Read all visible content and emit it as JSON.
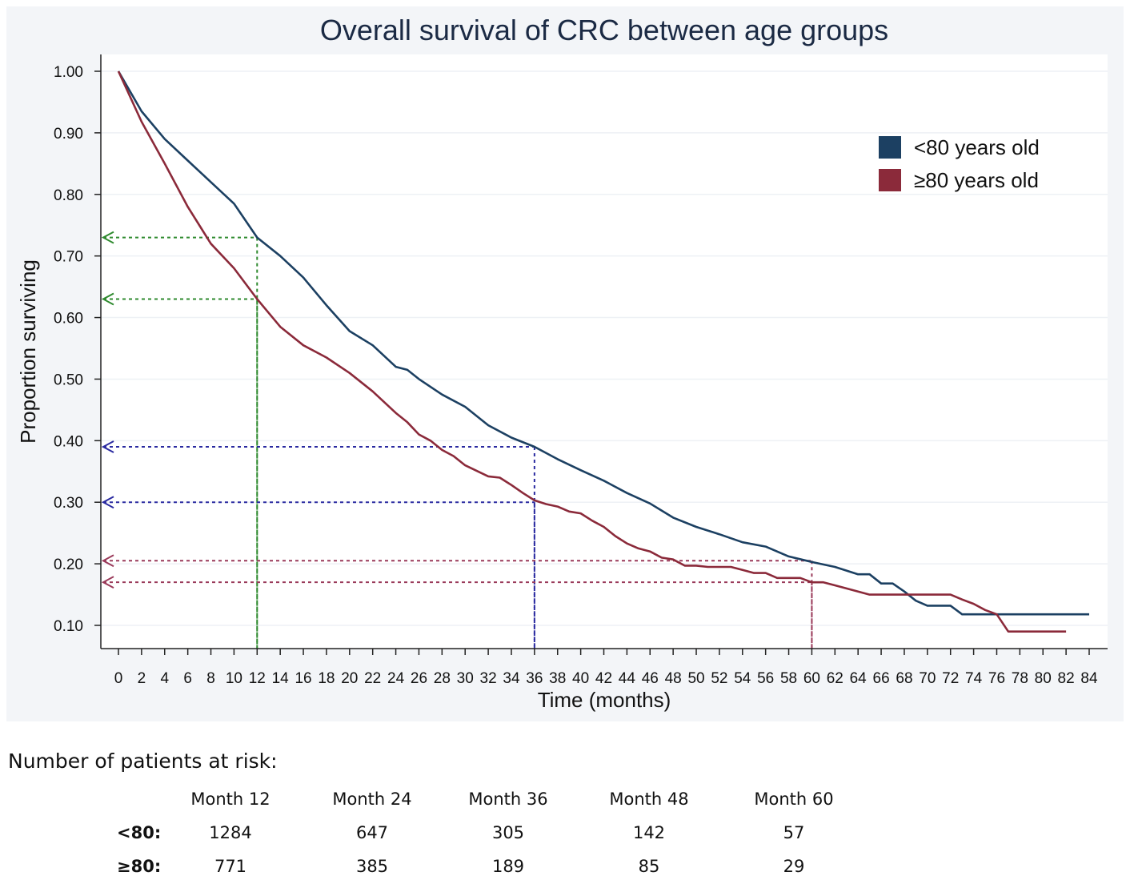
{
  "chart_data": {
    "type": "line",
    "title": "Overall survival of CRC between age groups",
    "xlabel": "Time (months)",
    "ylabel": "Proportion surviving",
    "xlim": [
      0,
      84
    ],
    "ylim": [
      0.1,
      1.0
    ],
    "xticks": [
      0,
      2,
      4,
      6,
      8,
      10,
      12,
      14,
      16,
      18,
      20,
      22,
      24,
      26,
      28,
      30,
      32,
      34,
      36,
      38,
      40,
      42,
      44,
      46,
      48,
      50,
      52,
      54,
      56,
      58,
      60,
      62,
      64,
      66,
      68,
      70,
      72,
      74,
      76,
      78,
      80,
      82,
      84
    ],
    "yticks": [
      {
        "value": 1.0,
        "label": "1.00"
      },
      {
        "value": 0.9,
        "label": "0.90"
      },
      {
        "value": 0.8,
        "label": "0.80"
      },
      {
        "value": 0.7,
        "label": "0.70"
      },
      {
        "value": 0.6,
        "label": "0.60"
      },
      {
        "value": 0.5,
        "label": "0.50"
      },
      {
        "value": 0.4,
        "label": "0.40"
      },
      {
        "value": 0.3,
        "label": "0.30"
      },
      {
        "value": 0.2,
        "label": "0.20"
      },
      {
        "value": 0.1,
        "label": "0.10"
      }
    ],
    "legend_position": "top-right",
    "series": [
      {
        "name": "<80 years old",
        "color": "#1c4062",
        "x": [
          0,
          2,
          4,
          6,
          8,
          10,
          12,
          14,
          16,
          18,
          20,
          22,
          24,
          25,
          26,
          28,
          30,
          32,
          34,
          36,
          38,
          40,
          42,
          44,
          46,
          48,
          50,
          52,
          54,
          56,
          58,
          60,
          62,
          64,
          65,
          66,
          67,
          68,
          69,
          70,
          71,
          72,
          73,
          74,
          75,
          76,
          78,
          80,
          82,
          84
        ],
        "y": [
          1.0,
          0.935,
          0.89,
          0.855,
          0.82,
          0.785,
          0.73,
          0.7,
          0.665,
          0.62,
          0.578,
          0.555,
          0.52,
          0.515,
          0.5,
          0.475,
          0.455,
          0.425,
          0.405,
          0.39,
          0.37,
          0.352,
          0.335,
          0.315,
          0.298,
          0.275,
          0.26,
          0.248,
          0.235,
          0.228,
          0.212,
          0.203,
          0.195,
          0.183,
          0.183,
          0.168,
          0.168,
          0.155,
          0.14,
          0.132,
          0.132,
          0.132,
          0.118,
          0.118,
          0.118,
          0.118,
          0.118,
          0.118,
          0.118,
          0.118
        ]
      },
      {
        "name": "≥80 years old",
        "color": "#8b2a3a",
        "x": [
          0,
          2,
          4,
          6,
          8,
          10,
          12,
          14,
          16,
          18,
          20,
          22,
          24,
          25,
          26,
          27,
          28,
          29,
          30,
          32,
          33,
          34,
          35,
          36,
          37,
          38,
          39,
          40,
          41,
          42,
          43,
          44,
          45,
          46,
          47,
          48,
          49,
          50,
          51,
          52,
          53,
          54,
          55,
          56,
          57,
          58,
          59,
          60,
          61,
          62,
          63,
          64,
          65,
          66,
          67,
          68,
          69,
          70,
          71,
          72,
          73,
          74,
          75,
          76,
          77,
          78,
          79,
          80,
          81,
          82
        ],
        "y": [
          1.0,
          0.918,
          0.85,
          0.78,
          0.72,
          0.68,
          0.63,
          0.585,
          0.555,
          0.535,
          0.51,
          0.48,
          0.445,
          0.43,
          0.41,
          0.4,
          0.385,
          0.375,
          0.36,
          0.342,
          0.34,
          0.328,
          0.315,
          0.303,
          0.297,
          0.293,
          0.285,
          0.282,
          0.27,
          0.26,
          0.245,
          0.233,
          0.225,
          0.22,
          0.21,
          0.207,
          0.197,
          0.197,
          0.195,
          0.195,
          0.195,
          0.19,
          0.185,
          0.185,
          0.177,
          0.177,
          0.177,
          0.17,
          0.17,
          0.165,
          0.16,
          0.155,
          0.15,
          0.15,
          0.15,
          0.15,
          0.15,
          0.15,
          0.15,
          0.15,
          0.142,
          0.135,
          0.125,
          0.118,
          0.09,
          0.09,
          0.09,
          0.09,
          0.09,
          0.09
        ]
      }
    ],
    "reference_lines": [
      {
        "x": 12,
        "y": 0.73,
        "color": "#2f8a2f"
      },
      {
        "x": 12,
        "y": 0.63,
        "color": "#2f8a2f"
      },
      {
        "x": 36,
        "y": 0.39,
        "color": "#2a2aa0"
      },
      {
        "x": 36,
        "y": 0.3,
        "color": "#2a2aa0"
      },
      {
        "x": 60,
        "y": 0.205,
        "color": "#9a3a5a"
      },
      {
        "x": 60,
        "y": 0.17,
        "color": "#9a3a5a"
      }
    ]
  },
  "risk_table": {
    "heading": "Number of patients at risk:",
    "columns": [
      "Month 12",
      "Month 24",
      "Month 36",
      "Month 48",
      "Month 60"
    ],
    "rows": [
      {
        "label": "<80:",
        "values": [
          "1284",
          "647",
          "305",
          "142",
          "57"
        ]
      },
      {
        "label": "≥80:",
        "values": [
          "771",
          "385",
          "189",
          "85",
          "29"
        ]
      }
    ]
  }
}
